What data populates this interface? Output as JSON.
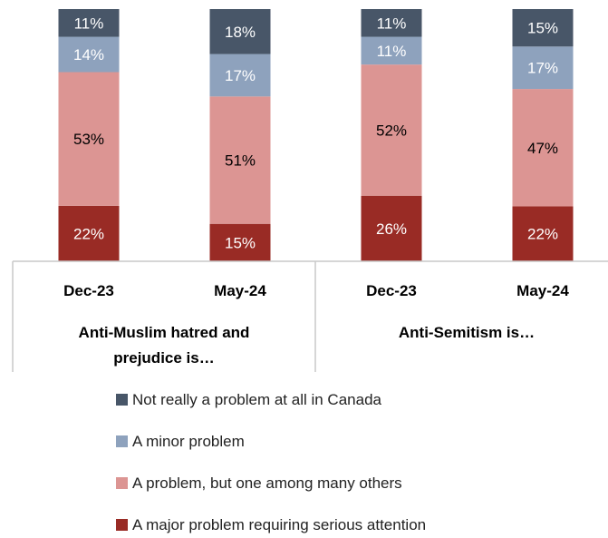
{
  "chart_data": {
    "type": "stacked-bar",
    "groups": [
      {
        "label_lines": [
          "Anti-Muslim hatred and",
          "prejudice is…"
        ],
        "categories": [
          "Dec-23",
          "May-24"
        ]
      },
      {
        "label_lines": [
          "Anti-Semitism is…"
        ],
        "categories": [
          "Dec-23",
          "May-24"
        ]
      }
    ],
    "bar_labels": [
      "Dec-23",
      "May-24",
      "Dec-23",
      "May-24"
    ],
    "series": [
      {
        "name": "A major problem requiring serious attention",
        "color": "#992b25",
        "text_color": "#ffffff",
        "values": [
          22,
          15,
          26,
          22
        ]
      },
      {
        "name": "A problem, but one among many others",
        "color": "#dc9593",
        "text_color": "#000000",
        "values": [
          53,
          51,
          52,
          47
        ]
      },
      {
        "name": "A minor problem",
        "color": "#8ea2bd",
        "text_color": "#ffffff",
        "values": [
          14,
          17,
          11,
          17
        ]
      },
      {
        "name": "Not really a problem at all in Canada",
        "color": "#485668",
        "text_color": "#ffffff",
        "values": [
          11,
          18,
          11,
          15
        ]
      }
    ],
    "value_suffix": "%",
    "legend_order": [
      3,
      2,
      1,
      0
    ],
    "legend_position": "bottom",
    "ylim": [
      0,
      100
    ]
  }
}
